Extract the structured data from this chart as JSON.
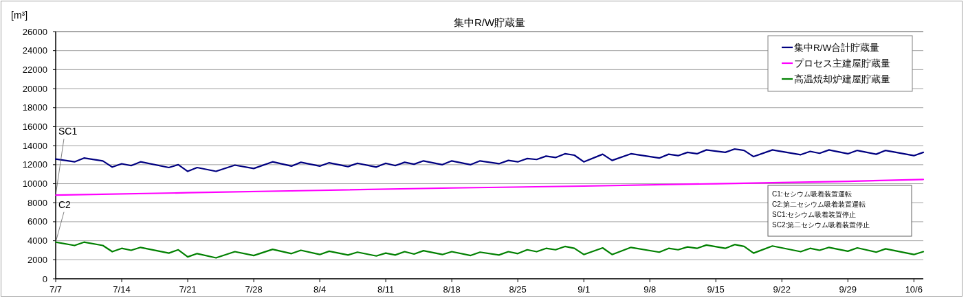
{
  "chart_data": {
    "type": "line",
    "title": "集中R/W貯蔵量",
    "ylabel": "[m³]",
    "xlim": [
      "--07-07",
      "--10-07"
    ],
    "ylim": [
      0,
      26000
    ],
    "xticks": [
      {
        "value": "--07-07",
        "label": "7/7"
      },
      {
        "value": "--07-14",
        "label": "7/14"
      },
      {
        "value": "--07-21",
        "label": "7/21"
      },
      {
        "value": "--07-28",
        "label": "7/28"
      },
      {
        "value": "--08-04",
        "label": "8/4"
      },
      {
        "value": "--08-11",
        "label": "8/11"
      },
      {
        "value": "--08-18",
        "label": "8/18"
      },
      {
        "value": "--08-25",
        "label": "8/25"
      },
      {
        "value": "--09-01",
        "label": "9/1"
      },
      {
        "value": "--09-08",
        "label": "9/8"
      },
      {
        "value": "--09-15",
        "label": "9/15"
      },
      {
        "value": "--09-22",
        "label": "9/22"
      },
      {
        "value": "--09-29",
        "label": "9/29"
      },
      {
        "value": "--10-06",
        "label": "10/6"
      }
    ],
    "yticks": [
      0,
      2000,
      4000,
      6000,
      8000,
      10000,
      12000,
      14000,
      16000,
      18000,
      20000,
      22000,
      24000,
      26000
    ],
    "grid": "y",
    "legend": "top right",
    "line_style": "solid",
    "x": [
      "--07-07",
      "--07-09",
      "--07-10",
      "--07-12",
      "--07-13",
      "--07-14",
      "--07-15",
      "--07-16",
      "--07-19",
      "--07-20",
      "--07-21",
      "--07-22",
      "--07-24",
      "--07-26",
      "--07-28",
      "--07-30",
      "--08-01",
      "--08-02",
      "--08-04",
      "--08-05",
      "--08-07",
      "--08-08",
      "--08-10",
      "--08-11",
      "--08-12",
      "--08-13",
      "--08-14",
      "--08-15",
      "--08-17",
      "--08-18",
      "--08-20",
      "--08-21",
      "--08-23",
      "--08-24",
      "--08-25",
      "--08-26",
      "--08-27",
      "--08-28",
      "--08-29",
      "--08-30",
      "--08-31",
      "--09-01",
      "--09-03",
      "--09-04",
      "--09-06",
      "--09-09",
      "--09-10",
      "--09-11",
      "--09-12",
      "--09-13",
      "--09-14",
      "--09-16",
      "--09-17",
      "--09-18",
      "--09-19",
      "--09-21",
      "--09-24",
      "--09-25",
      "--09-26",
      "--09-27",
      "--09-29",
      "--09-30",
      "--10-02",
      "--10-03",
      "--10-06",
      "--10-07"
    ],
    "series": [
      {
        "name": "集中R/W合計貯蔵量",
        "color": "#000080",
        "values": [
          12600,
          12300,
          12700,
          12400,
          11750,
          12100,
          11900,
          12300,
          11700,
          12000,
          11300,
          11700,
          11300,
          11950,
          11600,
          12300,
          11850,
          12250,
          11850,
          12200,
          11800,
          12150,
          11750,
          12150,
          11900,
          12250,
          12050,
          12400,
          12000,
          12400,
          12000,
          12400,
          12100,
          12450,
          12300,
          12650,
          12550,
          12900,
          12750,
          13150,
          13000,
          12300,
          13100,
          12450,
          13150,
          12700,
          13100,
          12950,
          13300,
          13150,
          13550,
          13300,
          13650,
          13500,
          12850,
          13550,
          13050,
          13400,
          13200,
          13550,
          13150,
          13500,
          13100,
          13500,
          12950,
          13300
        ]
      },
      {
        "name": "プロセス主建屋貯蔵量",
        "color": "#ff00ff",
        "x": [
          "--07-07",
          "--07-21",
          "--08-04",
          "--08-18",
          "--09-01",
          "--09-15",
          "--09-29",
          "--10-07"
        ],
        "values": [
          8800,
          9050,
          9300,
          9550,
          9750,
          10000,
          10250,
          10450
        ]
      },
      {
        "name": "高温焼却炉建屋貯蔵量",
        "color": "#008000",
        "values": [
          3850,
          3500,
          3850,
          3500,
          2850,
          3200,
          3000,
          3300,
          2700,
          3050,
          2300,
          2650,
          2200,
          2850,
          2450,
          3100,
          2650,
          3000,
          2550,
          2900,
          2500,
          2800,
          2400,
          2700,
          2500,
          2850,
          2600,
          2950,
          2550,
          2850,
          2450,
          2800,
          2500,
          2850,
          2650,
          3050,
          2850,
          3200,
          3050,
          3400,
          3200,
          2550,
          3250,
          2550,
          3300,
          2800,
          3200,
          3050,
          3350,
          3200,
          3550,
          3200,
          3600,
          3400,
          2700,
          3450,
          2850,
          3200,
          3000,
          3300,
          2900,
          3250,
          2800,
          3150,
          2550,
          2850
        ]
      }
    ],
    "annotations": [
      {
        "text": "SC1",
        "x": "--07-07",
        "y": 8800
      },
      {
        "text": "C2",
        "x": "--07-07",
        "y": 3850
      },
      "C1:セシウム吸着装置運転",
      "C2:第二セシウム吸着装置運転",
      "SC1:セシウム吸着装置停止",
      "SC2:第二セシウム吸着装置停止"
    ]
  }
}
